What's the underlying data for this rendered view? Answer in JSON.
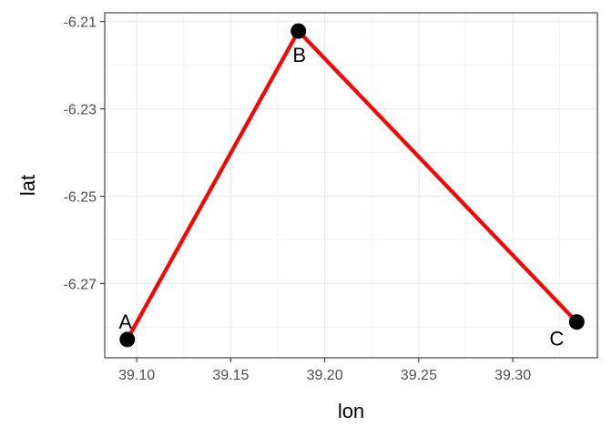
{
  "chart_data": {
    "type": "line",
    "title": "",
    "xlabel": "lon",
    "ylabel": "lat",
    "xlim": [
      39.083,
      39.345
    ],
    "ylim": [
      -6.287,
      -6.208
    ],
    "x_ticks": [
      39.1,
      39.15,
      39.2,
      39.25,
      39.3
    ],
    "x_tick_labels": [
      "39.10",
      "39.15",
      "39.20",
      "39.25",
      "39.30"
    ],
    "y_ticks": [
      -6.21,
      -6.23,
      -6.25,
      -6.27
    ],
    "y_tick_labels": [
      "-6.21",
      "-6.23",
      "-6.25",
      "-6.27"
    ],
    "grid": true,
    "legend": "none",
    "line_color": "#ff0000",
    "point_color": "#000000",
    "series": [
      {
        "points": [
          {
            "label": "A",
            "x": 39.095,
            "y": -6.2828
          },
          {
            "label": "B",
            "x": 39.186,
            "y": -6.2122
          },
          {
            "label": "C",
            "x": 39.334,
            "y": -6.2788
          }
        ]
      }
    ]
  }
}
